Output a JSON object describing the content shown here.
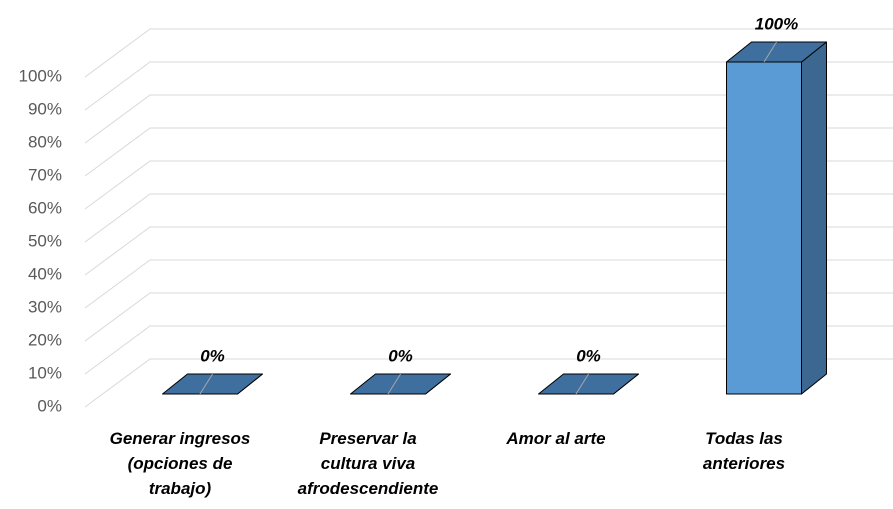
{
  "chart_data": {
    "type": "bar3d",
    "categories": [
      "Generar ingresos (opciones de trabajo)",
      "Preservar la cultura viva afrodescendiente",
      "Amor al arte",
      "Todas las anteriores"
    ],
    "values": [
      0,
      0,
      0,
      100
    ],
    "value_labels": [
      "0%",
      "0%",
      "0%",
      "100%"
    ],
    "color": "#5b9bd5",
    "ylim": [
      0,
      100
    ],
    "yticks": [
      {
        "value": 0,
        "label": "0%"
      },
      {
        "value": 10,
        "label": "10%"
      },
      {
        "value": 20,
        "label": "20%"
      },
      {
        "value": 30,
        "label": "30%"
      },
      {
        "value": 40,
        "label": "40%"
      },
      {
        "value": 50,
        "label": "50%"
      },
      {
        "value": 60,
        "label": "60%"
      },
      {
        "value": 70,
        "label": "70%"
      },
      {
        "value": 80,
        "label": "80%"
      },
      {
        "value": 90,
        "label": "90%"
      },
      {
        "value": 100,
        "label": "100%"
      }
    ],
    "grid": true
  }
}
